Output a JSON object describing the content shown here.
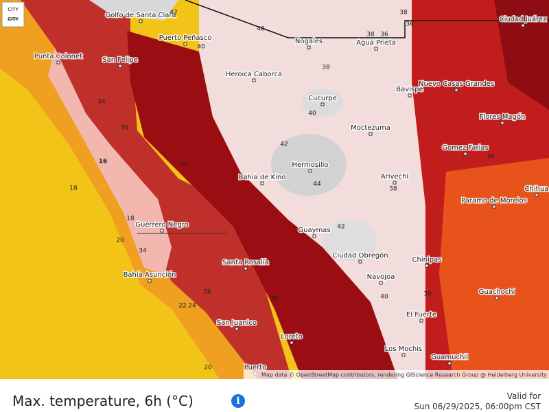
{
  "header": {
    "badge": [
      "CITY",
      "CITY"
    ]
  },
  "map": {
    "cities": [
      "Golfo de Santa Clara",
      "Puerto Peñasco",
      "Punta Colonet",
      "San Felipe",
      "Nogales",
      "Agua Prieta",
      "Ciudad Juárez",
      "Heroica Caborca",
      "Bavispe",
      "Nuevo Casas Grandes",
      "Cucurpe",
      "Flores Magón",
      "Moctezuma",
      "Gomez Farias",
      "Hermosillo",
      "Bahía de Kino",
      "Arivechi",
      "Chihua",
      "Paramo de Morelos",
      "Guerrero Negro",
      "Guaymas",
      "Ciudad Obregón",
      "Santa Rosalía",
      "Chinipas",
      "Bahía Asunción",
      "Navojoa",
      "Guachochi",
      "El Fuerte",
      "San Juanico",
      "Loreto",
      "Los Mochis",
      "Puerto",
      "Guamuchil"
    ],
    "contours": [
      42,
      40,
      40,
      38,
      38,
      36,
      38,
      36,
      36,
      34,
      16,
      18,
      18,
      20,
      36,
      42,
      40,
      44,
      42,
      38,
      38,
      36,
      22,
      24,
      20,
      40,
      38,
      34,
      36
    ],
    "attribution": "Map data © OpenStreetMap contributors, rendering GIScience Research Group @ Heidelberg University"
  },
  "footer": {
    "title": "Max. temperature, 6h (°C)",
    "valid_label": "Valid for",
    "valid_time": "Sun 06/29/2025, 06:00pm CST"
  }
}
